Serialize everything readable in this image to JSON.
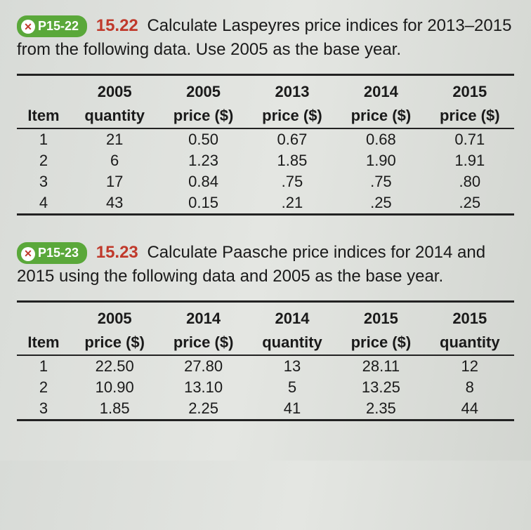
{
  "p22": {
    "badge": "P15-22",
    "qnum": "15.22",
    "text": "Calculate Laspeyres price indices for 2013–2015 from the following data. Use 2005 as the base year.",
    "table": {
      "header_top": [
        "",
        "2005",
        "2005",
        "2013",
        "2014",
        "2015"
      ],
      "header_bot": [
        "Item",
        "quantity",
        "price ($)",
        "price ($)",
        "price ($)",
        "price ($)"
      ],
      "rows": [
        [
          "1",
          "21",
          "0.50",
          "0.67",
          "0.68",
          "0.71"
        ],
        [
          "2",
          "6",
          "1.23",
          "1.85",
          "1.90",
          "1.91"
        ],
        [
          "3",
          "17",
          "0.84",
          ".75",
          ".75",
          ".80"
        ],
        [
          "4",
          "43",
          "0.15",
          ".21",
          ".25",
          ".25"
        ]
      ]
    }
  },
  "p23": {
    "badge": "P15-23",
    "qnum": "15.23",
    "text": "Calculate Paasche price indices for 2014 and 2015 using the following data and 2005 as the base year.",
    "table": {
      "header_top": [
        "",
        "2005",
        "2014",
        "2014",
        "2015",
        "2015"
      ],
      "header_bot": [
        "Item",
        "price ($)",
        "price ($)",
        "quantity",
        "price ($)",
        "quantity"
      ],
      "rows": [
        [
          "1",
          "22.50",
          "27.80",
          "13",
          "28.11",
          "12"
        ],
        [
          "2",
          "10.90",
          "13.10",
          "5",
          "13.25",
          "8"
        ],
        [
          "3",
          "1.85",
          "2.25",
          "41",
          "2.35",
          "44"
        ]
      ]
    }
  }
}
